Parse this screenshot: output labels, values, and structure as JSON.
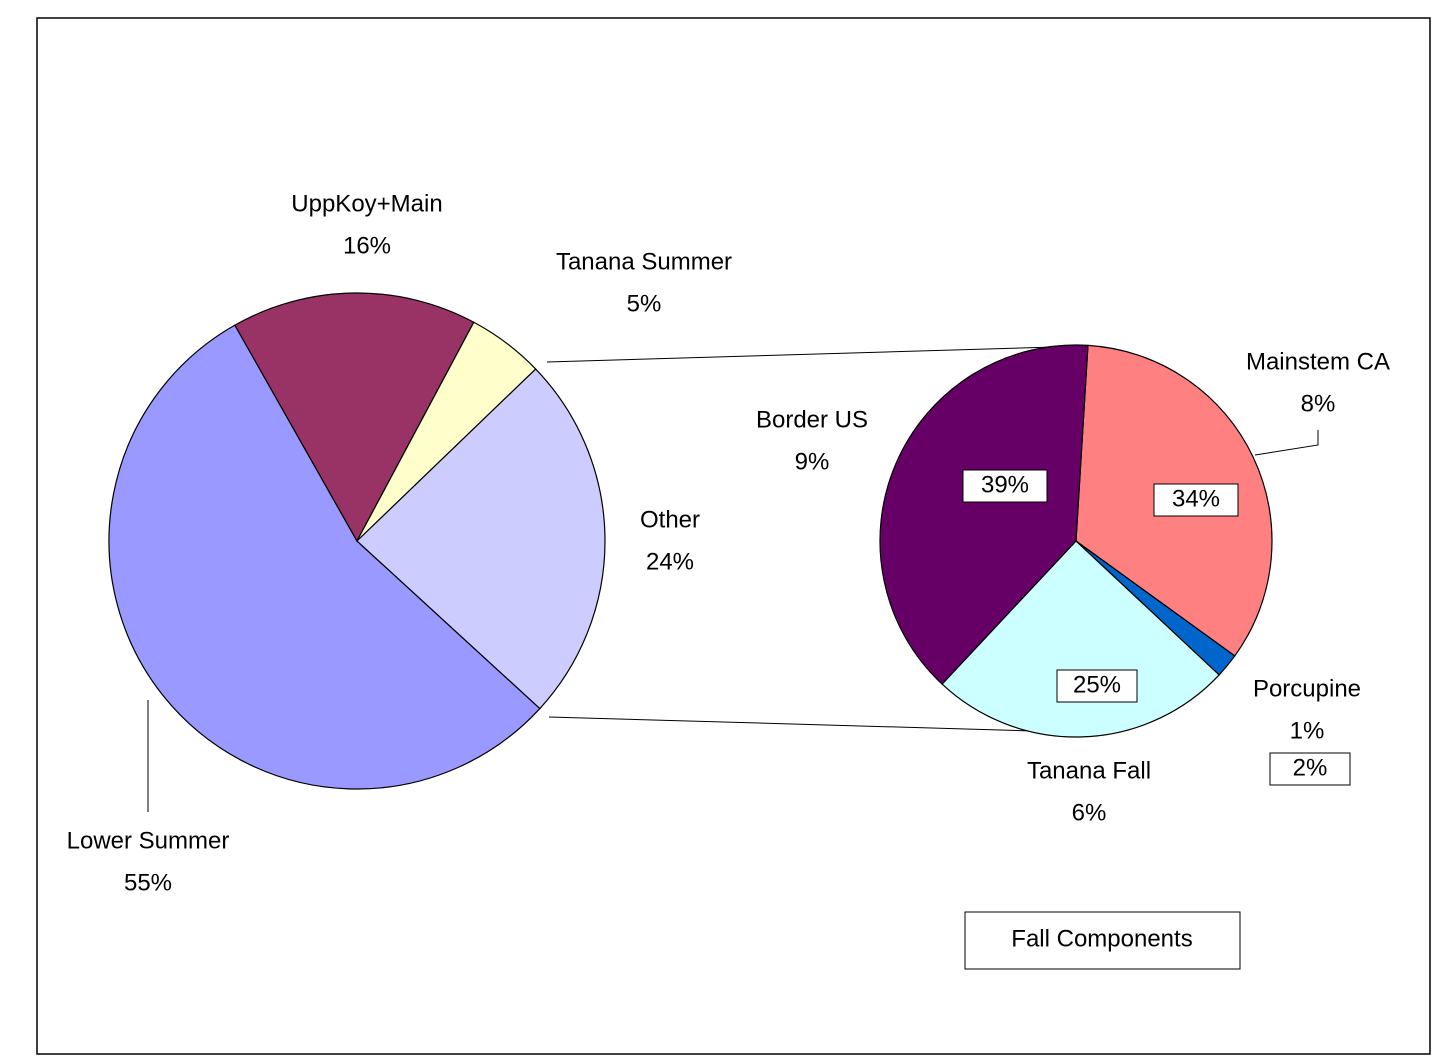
{
  "chart_data": [
    {
      "type": "pie",
      "categories": [
        "Lower Summer",
        "UppKoy+Main",
        "Tanana Summer",
        "Other"
      ],
      "values": [
        55,
        16,
        5,
        24
      ],
      "value_labels": [
        "55%",
        "16%",
        "5%",
        "24%"
      ],
      "colors": [
        "#9999ff",
        "#993366",
        "#ffffcc",
        "#ccccff"
      ]
    },
    {
      "type": "pie",
      "title": "Fall Components",
      "categories": [
        "Mainstem CA",
        "Porcupine",
        "Tanana Fall",
        "Border US"
      ],
      "values": [
        34,
        2,
        25,
        39
      ],
      "value_labels": [
        "34%",
        "2%",
        "25%",
        "39%"
      ],
      "total_percent": [
        8,
        1,
        6,
        9
      ],
      "total_percent_labels": [
        "8%",
        "1%",
        "6%",
        "9%"
      ],
      "colors": [
        "#ff8080",
        "#0066cc",
        "#ccffff",
        "#660066"
      ]
    }
  ]
}
